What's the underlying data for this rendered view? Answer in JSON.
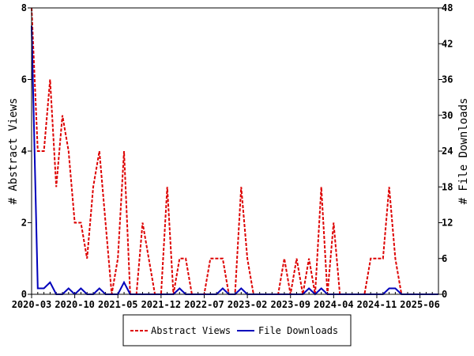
{
  "chart_data": {
    "type": "line",
    "title": "",
    "xlabel": "",
    "ylabel_left": "# Abstract Views",
    "ylabel_right": "# File Downloads",
    "ylim_left": [
      0,
      8
    ],
    "ylim_right": [
      0,
      48
    ],
    "yticks_left": [
      "0",
      "2",
      "4",
      "6",
      "8"
    ],
    "yticks_right": [
      "0",
      "6",
      "12",
      "18",
      "24",
      "30",
      "36",
      "42",
      "48"
    ],
    "x_start": "2020-03",
    "x_end": "2025-09",
    "xtick_labels": [
      {
        "label": "2020-03",
        "index": 0
      },
      {
        "label": "2020-10",
        "index": 7
      },
      {
        "label": "2021-05",
        "index": 14
      },
      {
        "label": "2021-12",
        "index": 21
      },
      {
        "label": "2022-07",
        "index": 28
      },
      {
        "label": "2023-02",
        "index": 35
      },
      {
        "label": "2023-09",
        "index": 42
      },
      {
        "label": "2024-04",
        "index": 49
      },
      {
        "label": "2024-11",
        "index": 56
      },
      {
        "label": "2025-06",
        "index": 63
      }
    ],
    "legend_position": "bottom-center",
    "series": [
      {
        "name": "Abstract Views",
        "axis": "left",
        "color": "#dd0000",
        "style": "dashed",
        "values": [
          8,
          4,
          4,
          6,
          3,
          5,
          4,
          2,
          2,
          1,
          3,
          4,
          2,
          0,
          1,
          4,
          0,
          0,
          2,
          1,
          0,
          0,
          3,
          0,
          1,
          1,
          0,
          0,
          0,
          1,
          1,
          1,
          0,
          0,
          3,
          1,
          0,
          0,
          0,
          0,
          0,
          1,
          0,
          1,
          0,
          1,
          0,
          3,
          0,
          2,
          0,
          0,
          0,
          0,
          0,
          1,
          1,
          1,
          3,
          1,
          0,
          0,
          0,
          0,
          0,
          0,
          0
        ]
      },
      {
        "name": "File Downloads",
        "axis": "right",
        "color": "#0000bb",
        "style": "solid",
        "values": [
          45,
          1,
          1,
          2,
          0,
          0,
          1,
          0,
          1,
          0,
          0,
          1,
          0,
          0,
          0,
          2,
          0,
          0,
          0,
          0,
          0,
          0,
          0,
          0,
          1,
          0,
          0,
          0,
          0,
          0,
          0,
          1,
          0,
          0,
          1,
          0,
          0,
          0,
          0,
          0,
          0,
          0,
          0,
          0,
          0,
          1,
          0,
          1,
          0,
          0,
          0,
          0,
          0,
          0,
          0,
          0,
          0,
          0,
          1,
          1,
          0,
          0,
          0,
          0,
          0,
          0,
          0
        ]
      }
    ]
  }
}
